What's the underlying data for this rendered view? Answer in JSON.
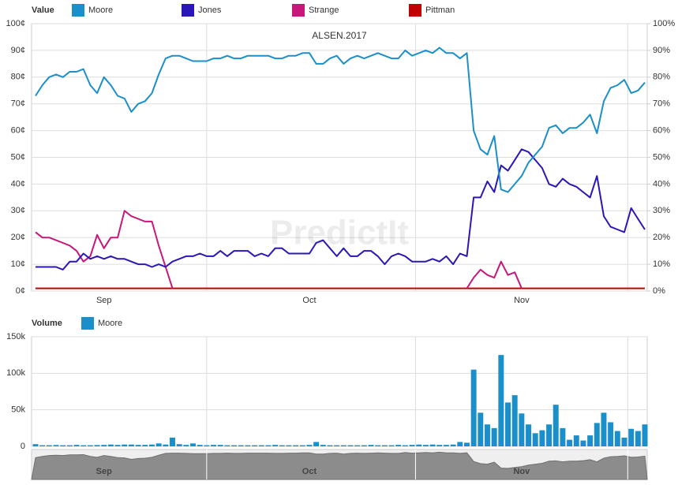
{
  "chart_data": [
    {
      "type": "line",
      "title": "ALSEN.2017",
      "legend_title": "Value",
      "watermark": "PredictIt",
      "categories": [
        null,
        null,
        null,
        null,
        null,
        null,
        null,
        null,
        null,
        null,
        "Sep",
        null,
        null,
        null,
        null,
        null,
        null,
        null,
        null,
        null,
        null,
        null,
        null,
        null,
        null,
        null,
        null,
        null,
        null,
        null,
        null,
        null,
        null,
        null,
        null,
        null,
        null,
        null,
        null,
        null,
        "Oct",
        null,
        null,
        null,
        null,
        null,
        null,
        null,
        null,
        null,
        null,
        null,
        null,
        null,
        null,
        null,
        null,
        null,
        null,
        null,
        null,
        null,
        null,
        null,
        null,
        null,
        null,
        null,
        null,
        null,
        null,
        "Nov",
        null,
        null,
        null,
        null,
        null,
        null,
        null,
        null,
        null,
        null,
        null,
        null,
        null,
        null,
        null,
        null,
        null,
        null
      ],
      "series": [
        {
          "name": "Moore",
          "color": "#1a8fc9",
          "values": [
            73,
            77,
            80,
            81,
            80,
            82,
            82,
            83,
            77,
            74,
            80,
            77,
            73,
            72,
            67,
            70,
            71,
            74,
            81,
            87,
            88,
            88,
            87,
            86,
            86,
            86,
            87,
            87,
            88,
            87,
            87,
            88,
            88,
            88,
            88,
            87,
            87,
            88,
            88,
            89,
            89,
            85,
            85,
            87,
            88,
            85,
            87,
            88,
            87,
            88,
            89,
            88,
            87,
            87,
            90,
            88,
            89,
            90,
            89,
            91,
            89,
            89,
            87,
            89,
            60,
            53,
            51,
            58,
            38,
            37,
            40,
            43,
            48,
            51,
            54,
            61,
            62,
            59,
            61,
            61,
            63,
            66,
            59,
            71,
            76,
            77,
            79,
            74,
            75,
            78
          ]
        },
        {
          "name": "Jones",
          "color": "#2a17b5",
          "values": [
            9,
            9,
            9,
            9,
            8,
            11,
            11,
            14,
            12,
            13,
            12,
            13,
            12,
            12,
            11,
            10,
            10,
            9,
            10,
            9,
            11,
            12,
            13,
            13,
            14,
            13,
            13,
            15,
            13,
            15,
            15,
            15,
            13,
            14,
            13,
            16,
            16,
            14,
            14,
            14,
            14,
            18,
            19,
            16,
            13,
            16,
            13,
            13,
            15,
            15,
            13,
            10,
            13,
            14,
            13,
            11,
            11,
            11,
            12,
            11,
            13,
            10,
            14,
            13,
            35,
            35,
            41,
            37,
            47,
            45,
            49,
            53,
            52,
            49,
            46,
            40,
            39,
            42,
            40,
            39,
            37,
            35,
            43,
            28,
            24,
            23,
            22,
            31,
            27,
            23
          ]
        },
        {
          "name": "Strange",
          "color": "#c8177a",
          "values": [
            22,
            20,
            20,
            19,
            18,
            17,
            15,
            11,
            13,
            21,
            16,
            20,
            20,
            30,
            28,
            27,
            26,
            26,
            17,
            9,
            1,
            null,
            null,
            null,
            null,
            null,
            null,
            null,
            null,
            null,
            null,
            null,
            null,
            null,
            null,
            null,
            null,
            null,
            null,
            null,
            null,
            null,
            null,
            null,
            null,
            null,
            null,
            null,
            null,
            null,
            null,
            null,
            null,
            null,
            null,
            null,
            null,
            null,
            null,
            null,
            null,
            null,
            null,
            1,
            5,
            8,
            6,
            5,
            11,
            6,
            7,
            1,
            null,
            null,
            null,
            null,
            null,
            null,
            null,
            null,
            null,
            null,
            null,
            null,
            null,
            null,
            null,
            null,
            null,
            null
          ]
        },
        {
          "name": "Pittman",
          "color": "#c00000",
          "values": [
            1,
            1,
            1,
            1,
            1,
            1,
            1,
            1,
            1,
            1,
            1,
            1,
            1,
            1,
            1,
            1,
            1,
            1,
            1,
            1,
            1,
            1,
            1,
            1,
            1,
            1,
            1,
            1,
            1,
            1,
            1,
            1,
            1,
            1,
            1,
            1,
            1,
            1,
            1,
            1,
            1,
            1,
            1,
            1,
            1,
            1,
            1,
            1,
            1,
            1,
            1,
            1,
            1,
            1,
            1,
            1,
            1,
            1,
            1,
            1,
            1,
            1,
            1,
            1,
            1,
            1,
            1,
            1,
            1,
            1,
            1,
            1,
            1,
            1,
            1,
            1,
            1,
            1,
            1,
            1,
            1,
            1,
            1,
            1,
            1,
            1,
            1,
            1,
            1,
            1
          ]
        }
      ],
      "ylim": [
        0,
        100
      ],
      "yticks": [
        {
          "value": 0,
          "label": "0¢"
        },
        {
          "value": 10,
          "label": "10¢"
        },
        {
          "value": 20,
          "label": "20¢"
        },
        {
          "value": 30,
          "label": "30¢"
        },
        {
          "value": 40,
          "label": "40¢"
        },
        {
          "value": 50,
          "label": "50¢"
        },
        {
          "value": 60,
          "label": "60¢"
        },
        {
          "value": 70,
          "label": "70¢"
        },
        {
          "value": 80,
          "label": "80¢"
        },
        {
          "value": 90,
          "label": "90¢"
        },
        {
          "value": 100,
          "label": "100¢"
        }
      ],
      "y2lim": [
        0,
        100
      ],
      "y2ticks": [
        {
          "value": 0,
          "label": "0%"
        },
        {
          "value": 10,
          "label": "10%"
        },
        {
          "value": 20,
          "label": "20%"
        },
        {
          "value": 30,
          "label": "30%"
        },
        {
          "value": 40,
          "label": "40%"
        },
        {
          "value": 50,
          "label": "50%"
        },
        {
          "value": 60,
          "label": "60%"
        },
        {
          "value": 70,
          "label": "70%"
        },
        {
          "value": 80,
          "label": "80%"
        },
        {
          "value": 90,
          "label": "90%"
        },
        {
          "value": 100,
          "label": "100%"
        }
      ],
      "grid": true
    },
    {
      "type": "bar",
      "legend_title": "Volume",
      "series": [
        {
          "name": "Moore",
          "color": "#1a8fc9",
          "values": [
            3000,
            1500,
            1500,
            1800,
            1500,
            1500,
            2000,
            1500,
            1500,
            1800,
            2000,
            2500,
            2000,
            2500,
            2500,
            2000,
            2000,
            2500,
            4000,
            2500,
            12000,
            3000,
            2000,
            4000,
            2000,
            1500,
            2000,
            2000,
            1500,
            1500,
            1500,
            1500,
            1500,
            1500,
            1500,
            2000,
            1500,
            1500,
            1500,
            1500,
            2000,
            6000,
            2000,
            1500,
            1500,
            1500,
            1500,
            1500,
            1500,
            2000,
            1500,
            1500,
            1500,
            2000,
            1500,
            2000,
            2500,
            2000,
            2500,
            2000,
            2000,
            2500,
            6000,
            5000,
            105000,
            46000,
            30000,
            25000,
            125000,
            60000,
            70000,
            45000,
            30000,
            18000,
            22000,
            30000,
            57000,
            25000,
            9000,
            15000,
            8000,
            15000,
            32000,
            46000,
            33000,
            21000,
            12000,
            24000,
            21000,
            30000
          ]
        }
      ],
      "ylim": [
        0,
        150000
      ],
      "yticks": [
        0,
        {
          "value": 50000,
          "label": "50k"
        },
        {
          "value": 100000,
          "label": "100k"
        },
        {
          "value": 150000,
          "label": "150k"
        }
      ],
      "grid": true
    }
  ]
}
